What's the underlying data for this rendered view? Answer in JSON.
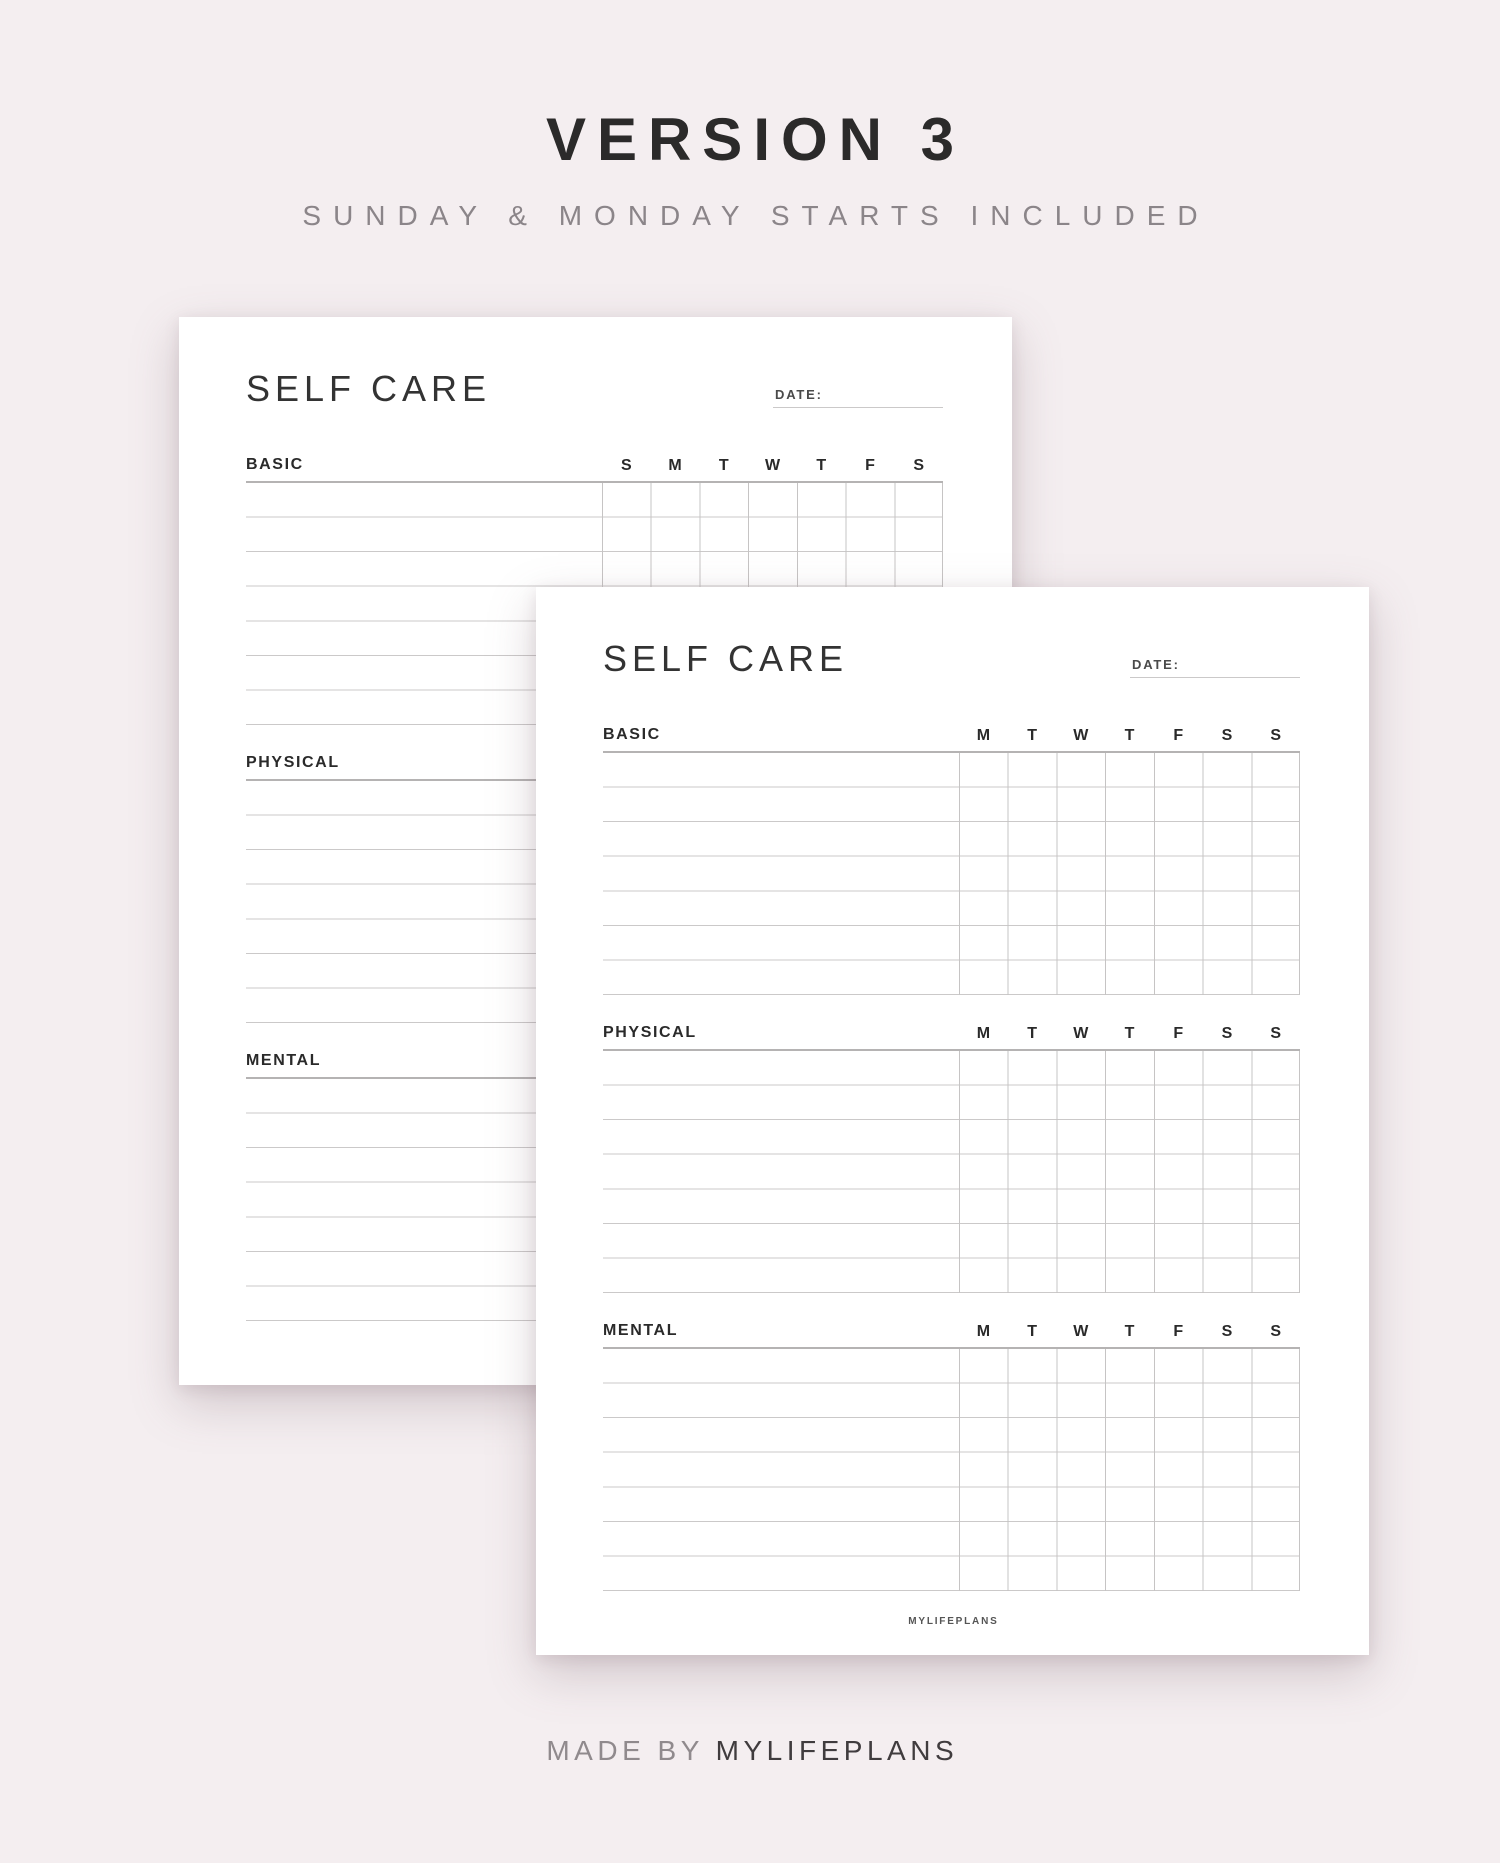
{
  "banner": {
    "title": "VERSION 3",
    "subtitle": "SUNDAY & MONDAY STARTS INCLUDED"
  },
  "pages": [
    {
      "name": "sunday-start",
      "title": "SELF CARE",
      "date_label": "DATE:",
      "brand": "MYLIFEPLANS",
      "sections": [
        {
          "label": "BASIC",
          "days": [
            "S",
            "M",
            "T",
            "W",
            "T",
            "F",
            "S"
          ],
          "rows": 7
        },
        {
          "label": "PHYSICAL",
          "days": [
            "S",
            "M",
            "T",
            "W",
            "T",
            "F",
            "S"
          ],
          "rows": 7
        },
        {
          "label": "MENTAL",
          "days": [
            "S",
            "M",
            "T",
            "W",
            "T",
            "F",
            "S"
          ],
          "rows": 7
        }
      ]
    },
    {
      "name": "monday-start",
      "title": "SELF CARE",
      "date_label": "DATE:",
      "brand": "MYLIFEPLANS",
      "sections": [
        {
          "label": "BASIC",
          "days": [
            "M",
            "T",
            "W",
            "T",
            "F",
            "S",
            "S"
          ],
          "rows": 7
        },
        {
          "label": "PHYSICAL",
          "days": [
            "M",
            "T",
            "W",
            "T",
            "F",
            "S",
            "S"
          ],
          "rows": 7
        },
        {
          "label": "MENTAL",
          "days": [
            "M",
            "T",
            "W",
            "T",
            "F",
            "S",
            "S"
          ],
          "rows": 7
        }
      ]
    }
  ],
  "footer": {
    "made_by": "MADE BY ",
    "brand": "MYLIFEPLANS"
  },
  "colors": {
    "background": "#f4eef0",
    "page": "#ffffff",
    "ink": "#2a2a2a",
    "muted": "#8b8589",
    "rule": "#b5b3b3",
    "row_line": "#cbc9c9",
    "grid_line": "#c6c4c4"
  }
}
